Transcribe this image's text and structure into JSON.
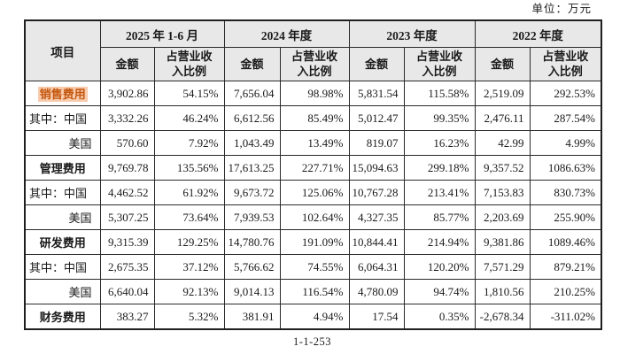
{
  "meta": {
    "unit_label": "单位：万元",
    "page_number": "1-1-253"
  },
  "colors": {
    "header_bg": "#e8e8e8",
    "border": "#2a2a2a",
    "highlight_text": "#c45911",
    "highlight_bg": "#f8cbad"
  },
  "table": {
    "corner_label": "项目",
    "period_headers": [
      "2025 年 1-6 月",
      "2024 年度",
      "2023 年度",
      "2022 年度"
    ],
    "sub_headers": {
      "amount": "金额",
      "ratio": "占营业收入比例"
    },
    "rows": [
      {
        "label": "销售费用",
        "type": "category-highlight",
        "values": [
          "3,902.86",
          "54.15%",
          "7,656.04",
          "98.98%",
          "5,831.54",
          "115.58%",
          "2,519.09",
          "292.53%"
        ]
      },
      {
        "label": "其中：中国",
        "type": "sub",
        "values": [
          "3,332.26",
          "46.24%",
          "6,612.56",
          "85.49%",
          "5,012.47",
          "99.35%",
          "2,476.11",
          "287.54%"
        ]
      },
      {
        "label": "美国",
        "type": "sub-right",
        "values": [
          "570.60",
          "7.92%",
          "1,043.49",
          "13.49%",
          "819.07",
          "16.23%",
          "42.99",
          "4.99%"
        ]
      },
      {
        "label": "管理费用",
        "type": "category",
        "values": [
          "9,769.78",
          "135.56%",
          "17,613.25",
          "227.71%",
          "15,094.63",
          "299.18%",
          "9,357.52",
          "1086.63%"
        ]
      },
      {
        "label": "其中：中国",
        "type": "sub",
        "values": [
          "4,462.52",
          "61.92%",
          "9,673.72",
          "125.06%",
          "10,767.28",
          "213.41%",
          "7,153.83",
          "830.73%"
        ]
      },
      {
        "label": "美国",
        "type": "sub-right",
        "values": [
          "5,307.25",
          "73.64%",
          "7,939.53",
          "102.64%",
          "4,327.35",
          "85.77%",
          "2,203.69",
          "255.90%"
        ]
      },
      {
        "label": "研发费用",
        "type": "category",
        "values": [
          "9,315.39",
          "129.25%",
          "14,780.76",
          "191.09%",
          "10,844.41",
          "214.94%",
          "9,381.86",
          "1089.46%"
        ]
      },
      {
        "label": "其中：中国",
        "type": "sub",
        "values": [
          "2,675.35",
          "37.12%",
          "5,766.62",
          "74.55%",
          "6,064.31",
          "120.20%",
          "7,571.29",
          "879.21%"
        ]
      },
      {
        "label": "美国",
        "type": "sub-right",
        "values": [
          "6,640.04",
          "92.13%",
          "9,014.13",
          "116.54%",
          "4,780.09",
          "94.74%",
          "1,810.56",
          "210.25%"
        ]
      },
      {
        "label": "财务费用",
        "type": "category",
        "values": [
          "383.27",
          "5.32%",
          "381.91",
          "4.94%",
          "17.54",
          "0.35%",
          "-2,678.34",
          "-311.02%"
        ]
      }
    ]
  }
}
